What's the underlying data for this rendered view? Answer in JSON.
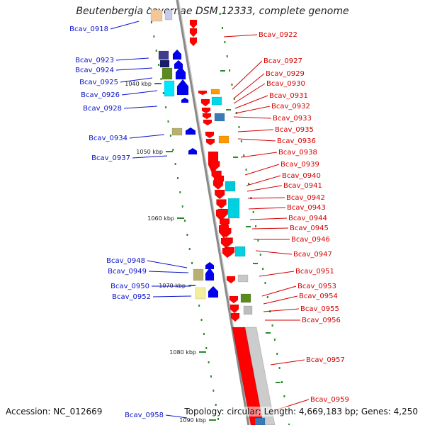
{
  "title": "Beutenbergia cavernae DSM 12333, complete genome",
  "footer": {
    "accession": "Accession: NC_012669",
    "summary": "Topology: circular; Length: 4,669,183 bp; Genes: 4,250"
  },
  "colors": {
    "left_label": "#0a12c8",
    "right_label": "#d40000",
    "tick": "#2a8a2a",
    "backbone": "#8a8a8a"
  },
  "scale_labels": [
    "1040 kbp",
    "1050 kbp",
    "1060 kbp",
    "1070 kbp",
    "1080 kbp",
    "1090 kbp"
  ],
  "left_labels": [
    "Bcav_0918",
    "Bcav_0923",
    "Bcav_0924",
    "Bcav_0925",
    "Bcav_0926",
    "Bcav_0928",
    "Bcav_0934",
    "Bcav_0937",
    "Bcav_0948",
    "Bcav_0949",
    "Bcav_0950",
    "Bcav_0952",
    "Bcav_0958"
  ],
  "right_labels": [
    "Bcav_0922",
    "Bcav_0927",
    "Bcav_0929",
    "Bcav_0930",
    "Bcav_0931",
    "Bcav_0932",
    "Bcav_0933",
    "Bcav_0935",
    "Bcav_0936",
    "Bcav_0938",
    "Bcav_0939",
    "Bcav_0940",
    "Bcav_0941",
    "Bcav_0942",
    "Bcav_0943",
    "Bcav_0944",
    "Bcav_0945",
    "Bcav_0946",
    "Bcav_0947",
    "Bcav_0951",
    "Bcav_0953",
    "Bcav_0954",
    "Bcav_0955",
    "Bcav_0956",
    "Bcav_0957",
    "Bcav_0959"
  ]
}
